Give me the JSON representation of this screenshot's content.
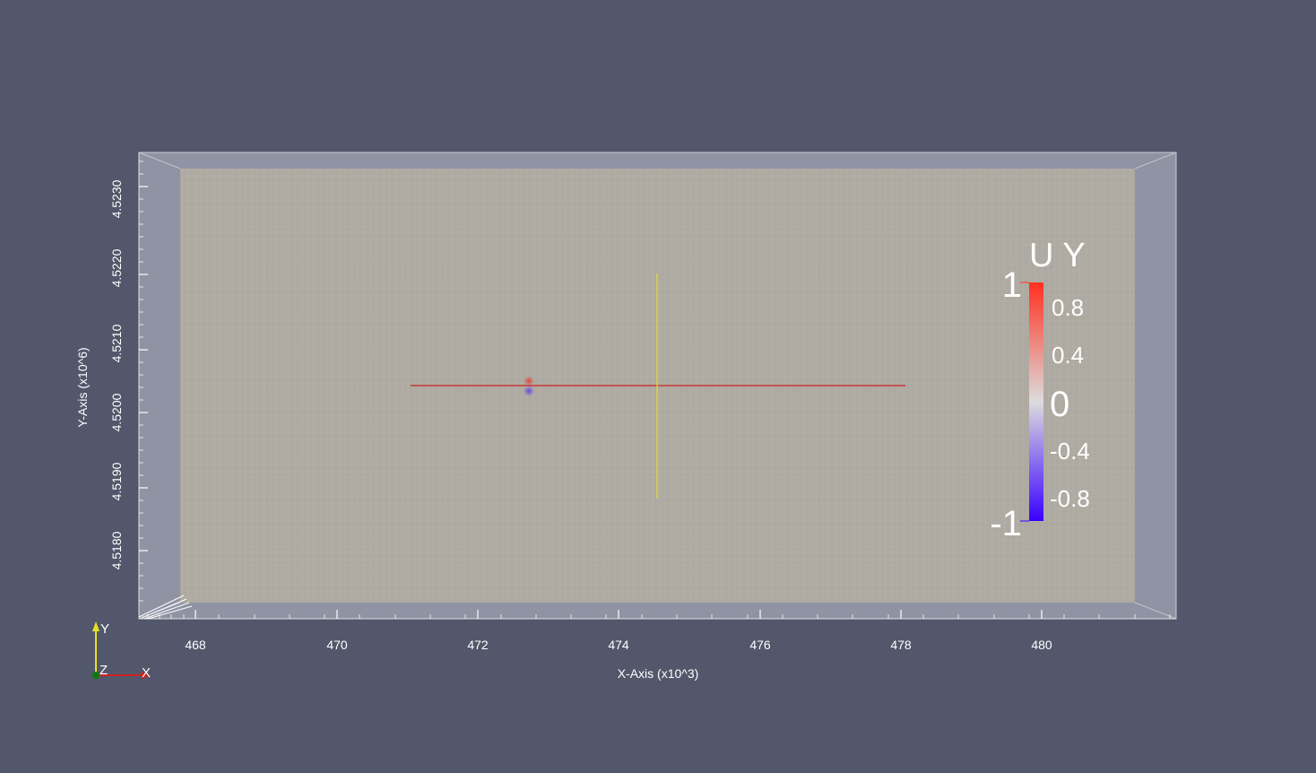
{
  "viewport": {
    "background_color": "#52576b",
    "slice_color": "#aeaaa2"
  },
  "x_axis": {
    "title": "X-Axis (x10^3)",
    "ticks": [
      "468",
      "470",
      "472",
      "474",
      "476",
      "478",
      "480"
    ]
  },
  "y_axis": {
    "title": "Y-Axis (x10^6)",
    "ticks": [
      "4.5180",
      "4.5190",
      "4.5200",
      "4.5210",
      "4.5220",
      "4.5230"
    ]
  },
  "color_legend": {
    "title": "U Y",
    "max_label": "1",
    "min_label": "-1",
    "labels": [
      "0.8",
      "0.4",
      "0",
      "-0.4",
      "-0.8"
    ],
    "colors": {
      "max": "#ff3020",
      "mid": "#dcdcdc",
      "min": "#3a00ff"
    }
  },
  "lines": {
    "horizontal_color": "#d02020",
    "vertical_color": "#e8e020"
  },
  "orientation_axes": {
    "y_label": "Y",
    "z_label": "Z",
    "x_label": "X",
    "colors": {
      "x": "#d02020",
      "y": "#e8e020",
      "z": "#0a7a0a"
    }
  }
}
